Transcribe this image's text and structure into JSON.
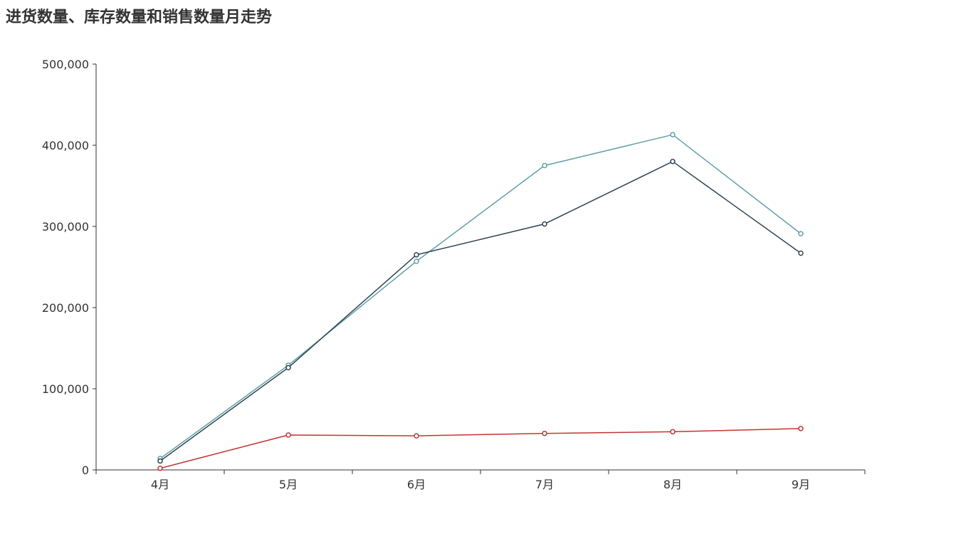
{
  "chart_data": {
    "type": "line",
    "title": "进货数量、库存数量和销售数量月走势",
    "xlabel": "",
    "ylabel": "",
    "categories": [
      "4月",
      "5月",
      "6月",
      "7月",
      "8月",
      "9月"
    ],
    "ylim": [
      0,
      500000
    ],
    "yticks": [
      "0",
      "100,000",
      "200,000",
      "300,000",
      "400,000",
      "500,000"
    ],
    "grid": false,
    "legend": "none",
    "series": [
      {
        "color": "#61a0a8",
        "values": [
          14000,
          129000,
          257000,
          375000,
          413000,
          291000
        ]
      },
      {
        "color": "#2f4554",
        "values": [
          11000,
          126000,
          265000,
          303000,
          380000,
          267000
        ]
      },
      {
        "color": "#c23531",
        "values": [
          2000,
          43000,
          42000,
          45000,
          47000,
          51000
        ]
      }
    ]
  }
}
